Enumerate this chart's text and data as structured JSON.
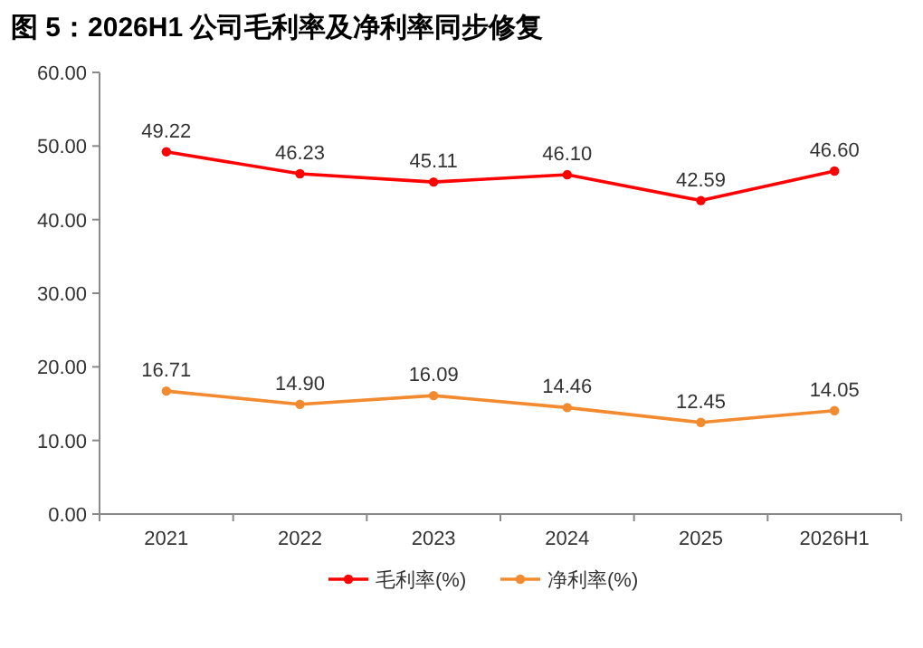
{
  "chart_data": {
    "type": "line",
    "title": "图 5：2026H1 公司毛利率及净利率同步修复",
    "categories": [
      "2021",
      "2022",
      "2023",
      "2024",
      "2025",
      "2026H1"
    ],
    "series": [
      {
        "name": "毛利率(%)",
        "color": "#ff0000",
        "values": [
          49.22,
          46.23,
          45.11,
          46.1,
          42.59,
          46.6
        ],
        "value_labels": [
          "49.22",
          "46.23",
          "45.11",
          "46.10",
          "42.59",
          "46.60"
        ]
      },
      {
        "name": "净利率(%)",
        "color": "#f28a30",
        "values": [
          16.71,
          14.9,
          16.09,
          14.46,
          12.45,
          14.05
        ],
        "value_labels": [
          "16.71",
          "14.90",
          "16.09",
          "14.46",
          "12.45",
          "14.05"
        ]
      }
    ],
    "ylim": [
      0,
      60
    ],
    "yticks": [
      {
        "value": 0,
        "label": "0.00"
      },
      {
        "value": 10,
        "label": "10.00"
      },
      {
        "value": 20,
        "label": "20.00"
      },
      {
        "value": 30,
        "label": "30.00"
      },
      {
        "value": 40,
        "label": "40.00"
      },
      {
        "value": 50,
        "label": "50.00"
      },
      {
        "value": 60,
        "label": "60.00"
      }
    ],
    "legend": "bottom",
    "marker": "circle",
    "line_style": "solid",
    "grid": false
  }
}
